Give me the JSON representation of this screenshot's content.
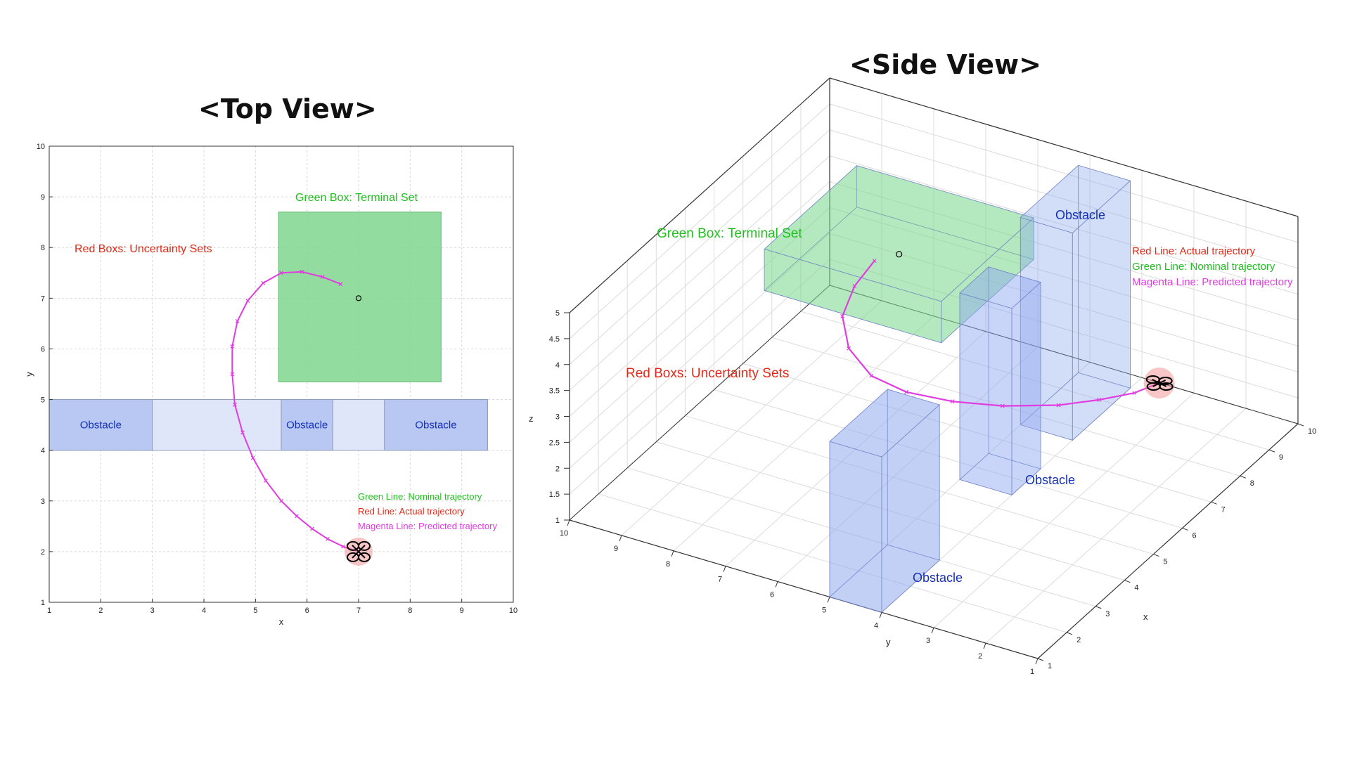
{
  "chart_data": [
    {
      "type": "scatter",
      "title": "<Top View>",
      "xlabel": "x",
      "ylabel": "y",
      "xlim": [
        1,
        10
      ],
      "ylim": [
        1,
        10
      ],
      "xticks": [
        1,
        2,
        3,
        4,
        5,
        6,
        7,
        8,
        9,
        10
      ],
      "yticks": [
        1,
        2,
        3,
        4,
        5,
        6,
        7,
        8,
        9,
        10
      ],
      "grid": true,
      "terminal_set": {
        "x": [
          5.45,
          8.6
        ],
        "y": [
          5.35,
          8.7
        ]
      },
      "target_point": [
        7,
        7
      ],
      "obstacle_band": {
        "x": [
          1,
          9.5
        ],
        "y": [
          4,
          5
        ]
      },
      "obstacles": [
        {
          "label": "Obstacle",
          "x": [
            1,
            3
          ],
          "y": [
            4,
            5
          ]
        },
        {
          "label": "Obstacle",
          "x": [
            5.5,
            6.5
          ],
          "y": [
            4,
            5
          ]
        },
        {
          "label": "Obstacle",
          "x": [
            7.5,
            9.5
          ],
          "y": [
            4,
            5
          ]
        }
      ],
      "trajectory": [
        [
          7,
          2
        ],
        [
          6.7,
          2.1
        ],
        [
          6.4,
          2.25
        ],
        [
          6.1,
          2.45
        ],
        [
          5.8,
          2.7
        ],
        [
          5.5,
          3
        ],
        [
          5.2,
          3.4
        ],
        [
          4.95,
          3.85
        ],
        [
          4.75,
          4.35
        ],
        [
          4.6,
          4.9
        ],
        [
          4.55,
          5.5
        ],
        [
          4.55,
          6.05
        ],
        [
          4.65,
          6.55
        ],
        [
          4.85,
          6.95
        ],
        [
          5.15,
          7.3
        ],
        [
          5.5,
          7.5
        ],
        [
          5.9,
          7.52
        ],
        [
          6.3,
          7.42
        ],
        [
          6.65,
          7.28
        ]
      ],
      "drone_position": [
        7,
        2
      ],
      "annotations": {
        "terminal": "Green Box: Terminal Set",
        "uncertainty": "Red Boxs: Uncertainty Sets",
        "nominal": "Green Line: Nominal trajectory",
        "actual": "Red Line: Actual trajectory",
        "predicted": "Magenta Line: Predicted trajectory"
      }
    },
    {
      "type": "scatter",
      "title": "<Side View>",
      "xlabel": "x",
      "ylabel": "y",
      "zlabel": "z",
      "xticks": [
        1,
        2,
        3,
        4,
        5,
        6,
        7,
        8,
        9,
        10
      ],
      "yticks": [
        10,
        9,
        8,
        7,
        6,
        5,
        4,
        3,
        2,
        1
      ],
      "zticks": [
        "1",
        "1.5",
        "2",
        "2.5",
        "3",
        "3.5",
        "4",
        "4.5",
        "5"
      ],
      "grid": true,
      "annotations": {
        "terminal": "Green Box: Terminal Set",
        "uncertainty": "Red Boxs: Uncertainty Sets",
        "actual": "Red Line: Actual trajectory",
        "nominal": "Green Line: Nominal trajectory",
        "predicted": "Magenta Line: Predicted trajectory",
        "obstacle_label": "Obstacle"
      }
    }
  ],
  "colors": {
    "terminal": "#7fd68f",
    "obstacle": "#8ea8ef",
    "obstacle_light": "#dfe6fa",
    "trajectory": "#e03ce0",
    "green_text": "#1fbf1f",
    "red_text": "#e02a1a",
    "magenta_text": "#e23ce2",
    "blue_text": "#1330b8"
  }
}
